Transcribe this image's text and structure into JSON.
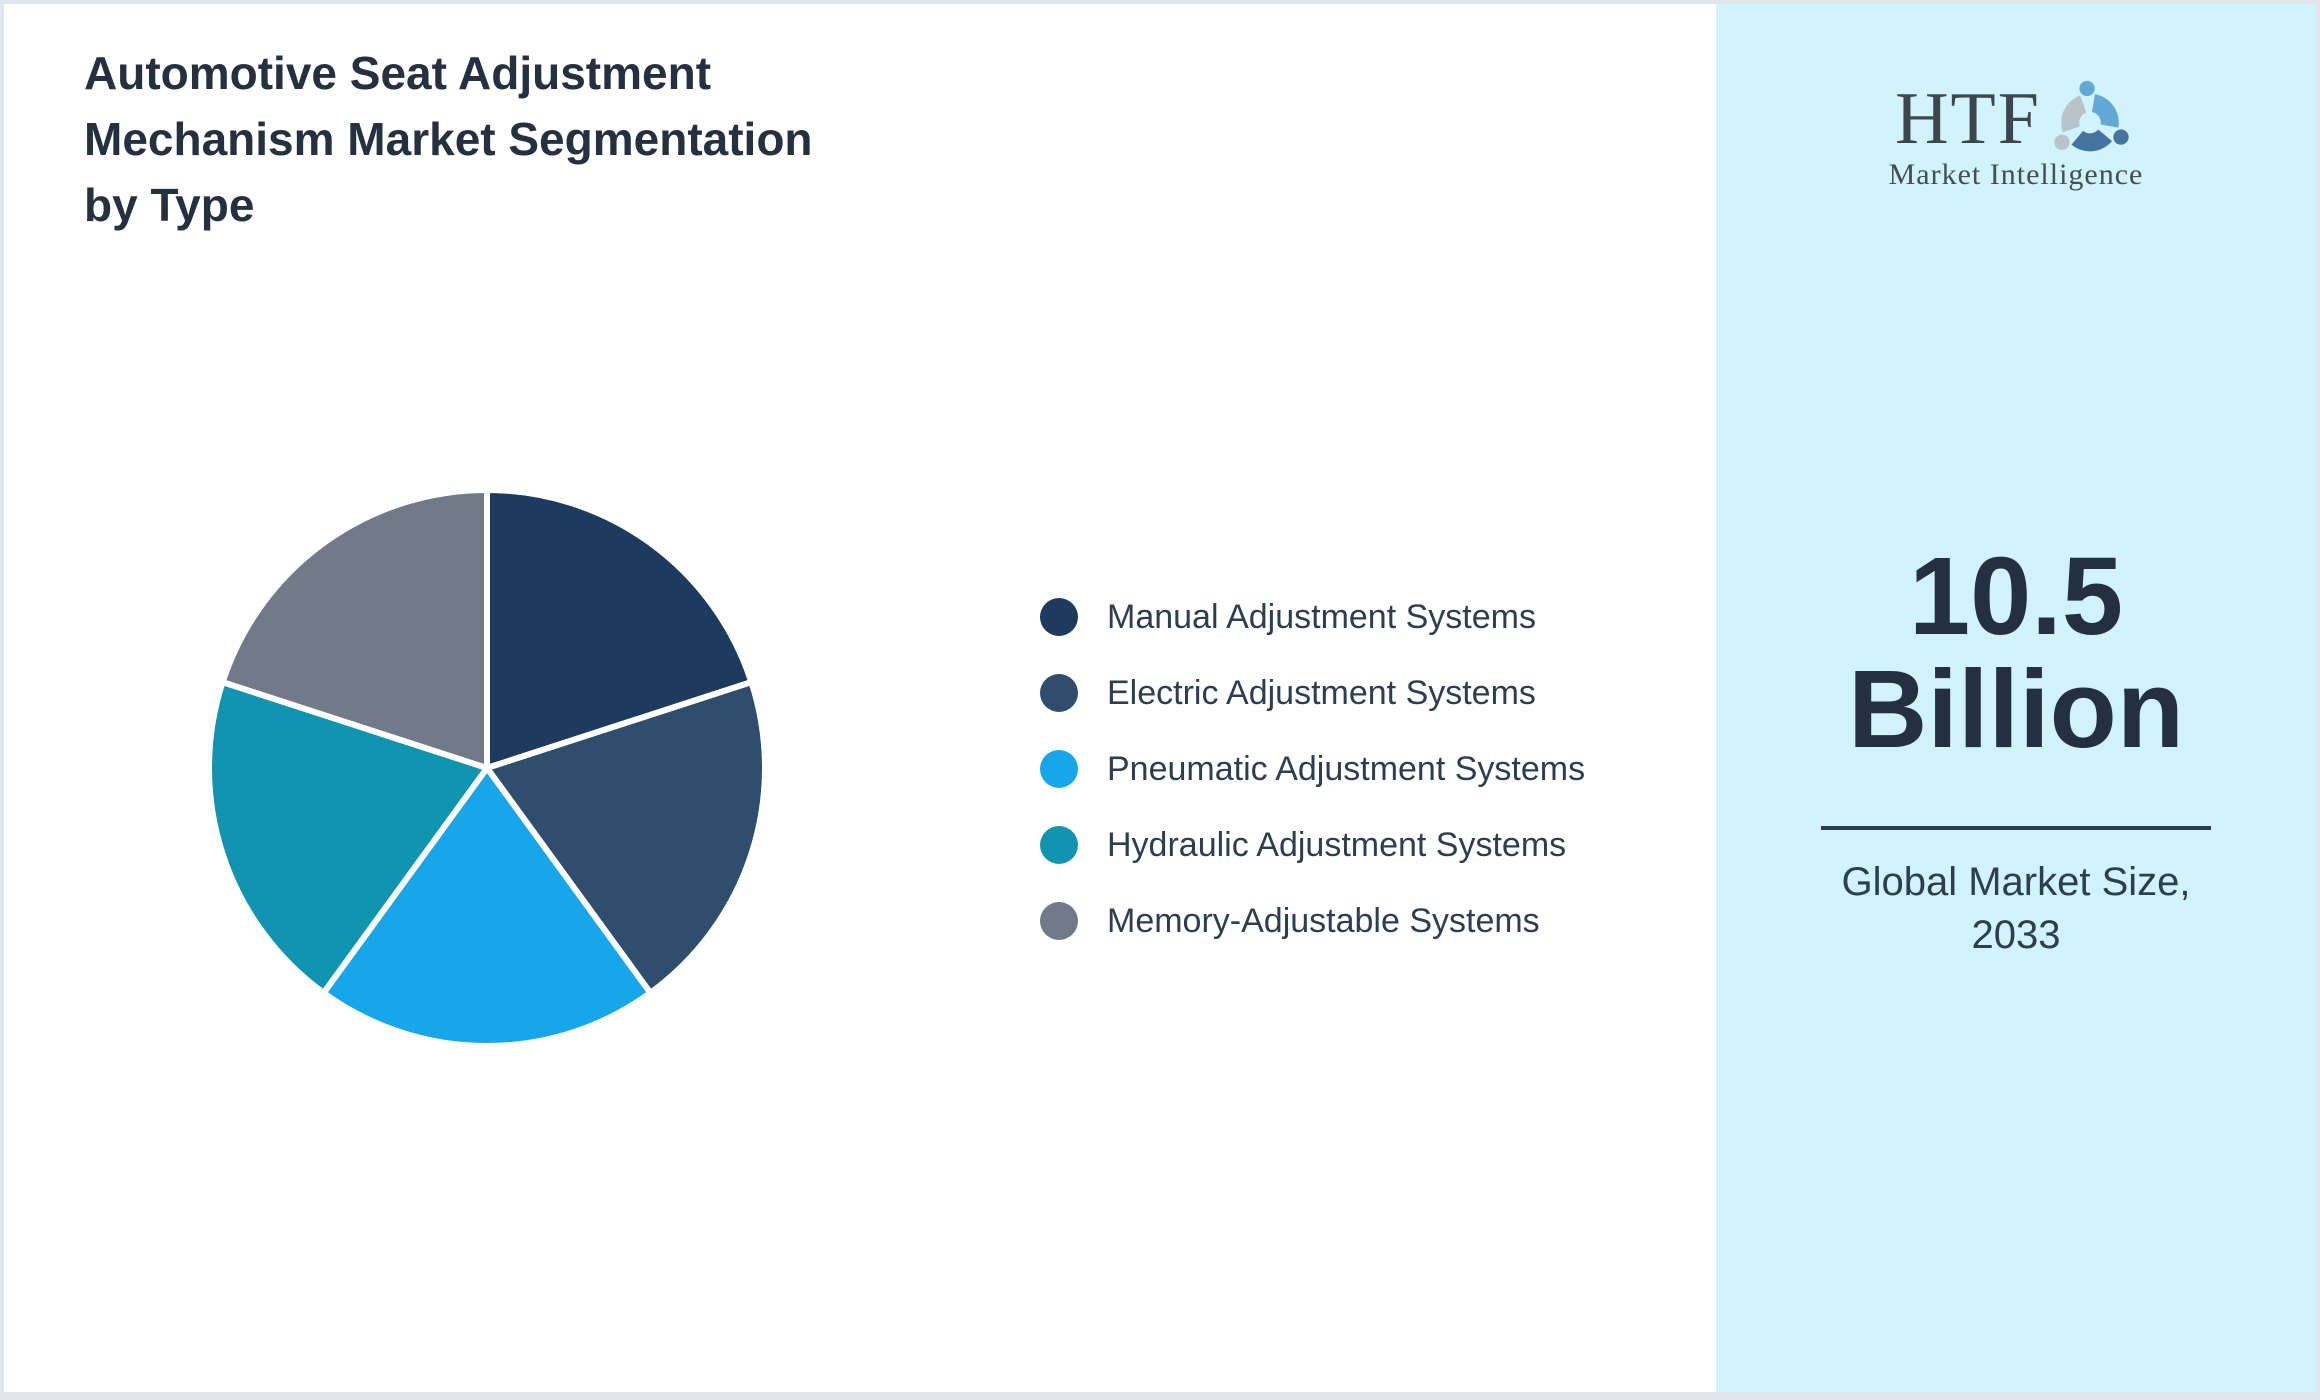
{
  "title": {
    "text": "Automotive Seat Adjustment Mechanism Market Segmentation by Type",
    "display": "Automotive Seat Adjustment\nMechanism Market Segmentation\nby Type"
  },
  "chart_data": {
    "type": "pie",
    "title": "Automotive Seat Adjustment Mechanism Market Segmentation by Type",
    "labels": [
      "Manual Adjustment Systems",
      "Electric Adjustment Systems",
      "Pneumatic Adjustment Systems",
      "Hydraulic Adjustment Systems",
      "Memory-Adjustable Systems"
    ],
    "values": [
      20,
      20,
      20,
      20,
      20
    ],
    "values_unit": "%",
    "colors": [
      "#1d3a5f",
      "#2f4d6c",
      "#17a6ea",
      "#1194af",
      "#707a89"
    ],
    "start_angle_deg": -90,
    "direction": "clockwise",
    "legend_position": "right",
    "slice_gap_color": "#ffffff"
  },
  "sidebar": {
    "background_color": "#d1f3fb",
    "logo": {
      "text": "HTF",
      "subtext": "Market Intelligence",
      "swirl_colors": [
        "#64a8d8",
        "#44749f",
        "#b9c3cb"
      ]
    },
    "market_size": {
      "value": "10.5 Billion",
      "caption": "Global Market Size, 2033"
    }
  }
}
